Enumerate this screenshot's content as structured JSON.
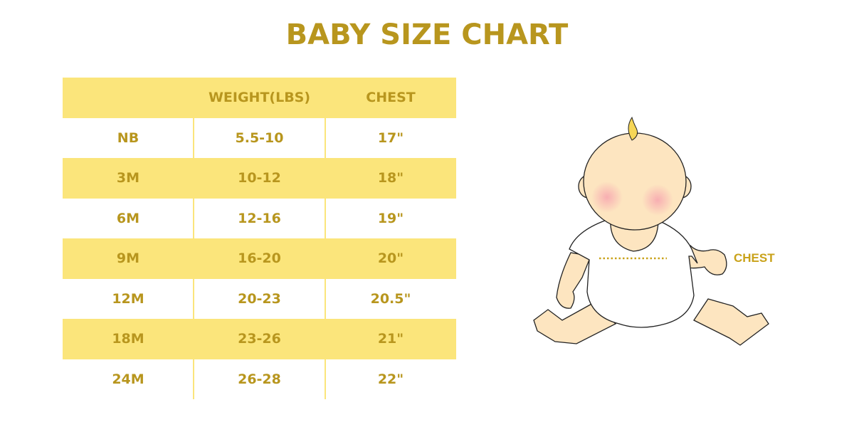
{
  "title": "BABY SIZE CHART",
  "table": {
    "headers": [
      "",
      "WEIGHT(LBS)",
      "CHEST"
    ],
    "rows": [
      [
        "NB",
        "5.5-10",
        "17\""
      ],
      [
        "3M",
        "10-12",
        "18\""
      ],
      [
        "6M",
        "12-16",
        "19\""
      ],
      [
        "9M",
        "16-20",
        "20\""
      ],
      [
        "12M",
        "20-23",
        "20.5\""
      ],
      [
        "18M",
        "23-26",
        "21\""
      ],
      [
        "24M",
        "26-28",
        "22\""
      ]
    ]
  },
  "illustration": {
    "chest_label": "CHEST"
  },
  "colors": {
    "text": "#b8961e",
    "stripe": "#fbe57b",
    "skin": "#fde5c0"
  }
}
